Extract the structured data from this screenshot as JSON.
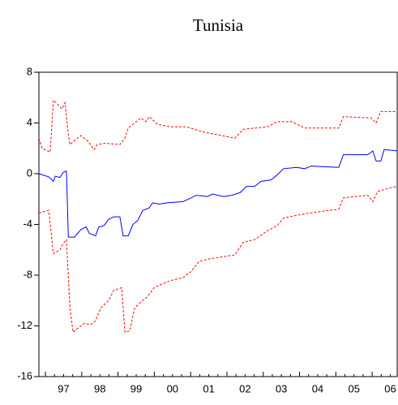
{
  "chart_data": {
    "type": "line",
    "title": "Tunisia",
    "xlim": [
      1996.82,
      2006.69
    ],
    "ylim": [
      -16,
      8
    ],
    "yticks": [
      -16,
      -12,
      -8,
      -4,
      0,
      4,
      8
    ],
    "xticks": [
      {
        "value": 1997.5,
        "label": "97"
      },
      {
        "value": 1998.5,
        "label": "98"
      },
      {
        "value": 1999.5,
        "label": "99"
      },
      {
        "value": 2000.5,
        "label": "00"
      },
      {
        "value": 2001.5,
        "label": "01"
      },
      {
        "value": 2002.5,
        "label": "02"
      },
      {
        "value": 2003.5,
        "label": "03"
      },
      {
        "value": 2004.5,
        "label": "04"
      },
      {
        "value": 2005.5,
        "label": "05"
      },
      {
        "value": 2006.5,
        "label": "06"
      }
    ],
    "series": [
      {
        "color": "#0000ff",
        "dash": false,
        "x": [
          1996.82,
          1997.09,
          1997.22,
          1997.27,
          1997.4,
          1997.49,
          1997.58,
          1997.63,
          1997.8,
          1997.98,
          1998.12,
          1998.21,
          1998.38,
          1998.47,
          1998.61,
          1998.74,
          1998.88,
          1999.05,
          1999.14,
          1999.28,
          1999.41,
          1999.54,
          1999.68,
          1999.86,
          1999.95,
          2000.13,
          2000.35,
          2000.79,
          2001.02,
          2001.15,
          2001.46,
          2001.6,
          2001.91,
          2002.13,
          2002.36,
          2002.54,
          2002.76,
          2002.94,
          2003.21,
          2003.38,
          2003.56,
          2003.92,
          2004.14,
          2004.32,
          2005.08,
          2005.21,
          2005.88,
          2006.02,
          2006.11,
          2006.24,
          2006.33,
          2006.69
        ],
        "values": [
          0,
          -0.25,
          -0.6,
          -0.2,
          -0.3,
          0.1,
          0.2,
          -5.0,
          -5.0,
          -4.4,
          -4.2,
          -4.7,
          -4.9,
          -4.2,
          -4.1,
          -3.6,
          -3.4,
          -3.4,
          -4.9,
          -4.9,
          -4.0,
          -3.7,
          -2.9,
          -2.7,
          -2.3,
          -2.4,
          -2.3,
          -2.2,
          -1.9,
          -1.7,
          -1.8,
          -1.6,
          -1.8,
          -1.7,
          -1.5,
          -1.0,
          -1.0,
          -0.6,
          -0.5,
          -0.1,
          0.4,
          0.5,
          0.4,
          0.6,
          0.5,
          1.5,
          1.5,
          1.8,
          1.0,
          1.0,
          1.9,
          1.8
        ]
      },
      {
        "color": "#ff0000",
        "dash": true,
        "x": [
          1996.82,
          1996.91,
          1997.13,
          1997.22,
          1997.36,
          1997.45,
          1997.54,
          1997.63,
          1997.67,
          1997.8,
          1997.98,
          1998.16,
          1998.34,
          1998.43,
          1998.65,
          1999.05,
          1999.19,
          1999.28,
          1999.46,
          1999.63,
          1999.77,
          1999.86,
          2000.08,
          2000.44,
          2000.88,
          2001.33,
          2002.22,
          2002.45,
          2003.12,
          2003.38,
          2003.79,
          2004.14,
          2005.08,
          2005.21,
          2005.97,
          2006.11,
          2006.24,
          2006.69
        ],
        "values": [
          2.8,
          2.0,
          1.7,
          5.8,
          5.4,
          5.1,
          5.6,
          3.1,
          2.3,
          2.6,
          3.0,
          2.6,
          1.9,
          2.3,
          2.4,
          2.3,
          2.8,
          3.6,
          4.0,
          4.4,
          4.1,
          4.5,
          3.9,
          3.7,
          3.7,
          3.3,
          2.8,
          3.5,
          3.7,
          4.1,
          4.1,
          3.6,
          3.6,
          4.5,
          4.4,
          4.0,
          4.9,
          4.9
        ]
      },
      {
        "color": "#ff0000",
        "dash": true,
        "x": [
          1996.82,
          1997.09,
          1997.22,
          1997.4,
          1997.49,
          1997.58,
          1997.67,
          1997.76,
          1997.89,
          1998.07,
          1998.25,
          1998.38,
          1998.52,
          1998.74,
          1998.88,
          1999.1,
          1999.19,
          1999.32,
          1999.46,
          1999.63,
          1999.81,
          1999.99,
          2000.21,
          2000.48,
          2000.79,
          2001.02,
          2001.24,
          2001.55,
          2002.22,
          2002.45,
          2002.76,
          2003.12,
          2003.38,
          2003.56,
          2003.88,
          2004.28,
          2005.08,
          2005.21,
          2005.88,
          2006.02,
          2006.15,
          2006.38,
          2006.69
        ],
        "values": [
          -3.1,
          -2.9,
          -6.3,
          -6.0,
          -5.5,
          -5.2,
          -10.4,
          -12.5,
          -12.2,
          -11.8,
          -11.9,
          -11.6,
          -10.6,
          -10.0,
          -9.2,
          -9.0,
          -12.5,
          -12.4,
          -10.6,
          -10.1,
          -9.7,
          -9.0,
          -8.7,
          -8.4,
          -8.2,
          -7.7,
          -6.9,
          -6.7,
          -6.4,
          -5.4,
          -5.2,
          -4.5,
          -4.1,
          -3.5,
          -3.3,
          -3.1,
          -2.8,
          -1.9,
          -1.7,
          -2.2,
          -1.4,
          -1.2,
          -1.0
        ]
      }
    ]
  }
}
